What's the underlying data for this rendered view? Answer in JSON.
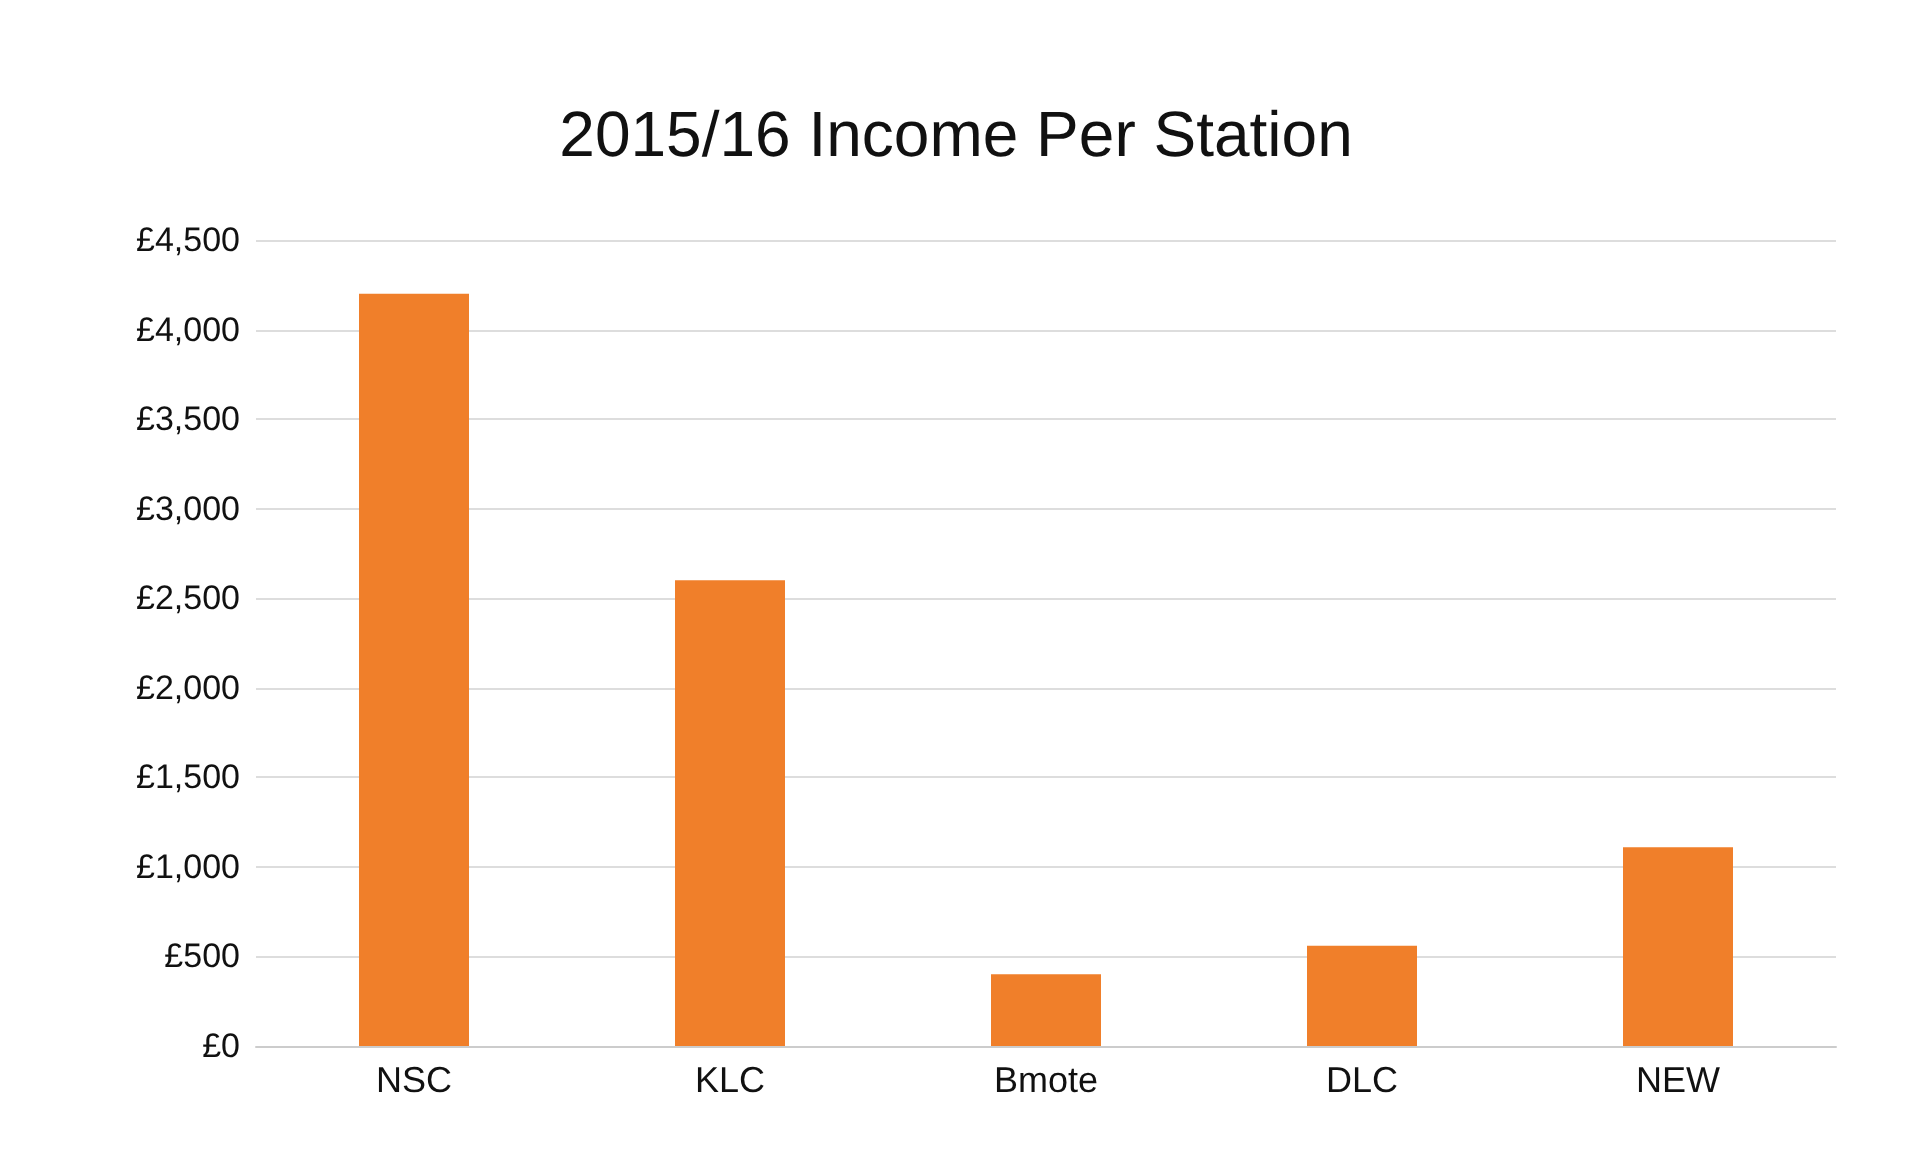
{
  "chart_data": {
    "type": "bar",
    "title": "2015/16 Income Per Station",
    "categories": [
      "NSC",
      "KLC",
      "Bmote",
      "DLC",
      "NEW"
    ],
    "values": [
      4200,
      2600,
      400,
      560,
      1110
    ],
    "color": "#f07f2a",
    "ylim": [
      0,
      4500
    ],
    "yticks": [
      {
        "value": 0,
        "label": "£0"
      },
      {
        "value": 500,
        "label": "£500"
      },
      {
        "value": 1000,
        "label": "£1,000"
      },
      {
        "value": 1500,
        "label": "£1,500"
      },
      {
        "value": 2000,
        "label": "£2,000"
      },
      {
        "value": 2500,
        "label": "£2,500"
      },
      {
        "value": 3000,
        "label": "£3,000"
      },
      {
        "value": 3500,
        "label": "£3,500"
      },
      {
        "value": 4000,
        "label": "£4,000"
      },
      {
        "value": 4500,
        "label": "£4,500"
      }
    ],
    "grid": true
  }
}
